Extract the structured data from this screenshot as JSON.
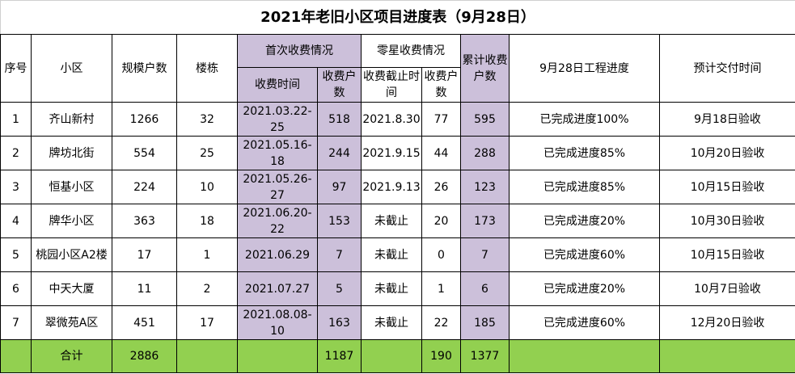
{
  "title": "2021年老旧小区项目进度表（9月28日）",
  "headers": {
    "seq": "序号",
    "community": "小区",
    "households": "规模户数",
    "buildings": "楼栋",
    "first_group": "首次收费情况",
    "first_time": "收费时间",
    "first_count": "收费户数",
    "misc_group": "零星收费情况",
    "misc_deadline": "收费截止时间",
    "misc_count": "收费户数",
    "total_paid": "累计收费户数",
    "progress": "9月28日工程进度",
    "delivery": "预计交付时间"
  },
  "rows": [
    {
      "seq": "1",
      "community": "齐山新村",
      "households": "1266",
      "buildings": "32",
      "first_time": "2021.03.22-25",
      "first_count": "518",
      "misc_deadline": "2021.8.30",
      "misc_count": "77",
      "total_paid": "595",
      "progress": "已完成进度100%",
      "delivery": "9月18日验收"
    },
    {
      "seq": "2",
      "community": "牌坊北街",
      "households": "554",
      "buildings": "25",
      "first_time": "2021.05.16-18",
      "first_count": "244",
      "misc_deadline": "2021.9.15",
      "misc_count": "44",
      "total_paid": "288",
      "progress": "已完成进度85%",
      "delivery": "10月20日验收"
    },
    {
      "seq": "3",
      "community": "恒基小区",
      "households": "224",
      "buildings": "10",
      "first_time": "2021.05.26-27",
      "first_count": "97",
      "misc_deadline": "2021.9.13",
      "misc_count": "26",
      "total_paid": "123",
      "progress": "已完成进度85%",
      "delivery": "10月15日验收"
    },
    {
      "seq": "4",
      "community": "牌华小区",
      "households": "363",
      "buildings": "18",
      "first_time": "2021.06.20-22",
      "first_count": "153",
      "misc_deadline": "未截止",
      "misc_count": "20",
      "total_paid": "173",
      "progress": "已完成进度20%",
      "delivery": "10月30日验收"
    },
    {
      "seq": "5",
      "community": "桃园小区A2楼",
      "households": "17",
      "buildings": "1",
      "first_time": "2021.06.29",
      "first_count": "7",
      "misc_deadline": "未截止",
      "misc_count": "0",
      "total_paid": "7",
      "progress": "已完成进度60%",
      "delivery": "10月15日验收"
    },
    {
      "seq": "6",
      "community": "中天大厦",
      "households": "11",
      "buildings": "2",
      "first_time": "2021.07.27",
      "first_count": "5",
      "misc_deadline": "未截止",
      "misc_count": "1",
      "total_paid": "6",
      "progress": "已完成进度20%",
      "delivery": "10月7日验收"
    },
    {
      "seq": "7",
      "community": "翠微苑A区",
      "households": "451",
      "buildings": "17",
      "first_time": "2021.08.08-10",
      "first_count": "163",
      "misc_deadline": "未截止",
      "misc_count": "22",
      "total_paid": "185",
      "progress": "已完成进度60%",
      "delivery": "12月20日验收"
    }
  ],
  "total": {
    "label": "合计",
    "households": "2886",
    "first_count": "1187",
    "misc_count": "190",
    "total_paid": "1377"
  },
  "colors": {
    "purple_fill": "#ccc0da",
    "green_fill": "#92d050"
  }
}
